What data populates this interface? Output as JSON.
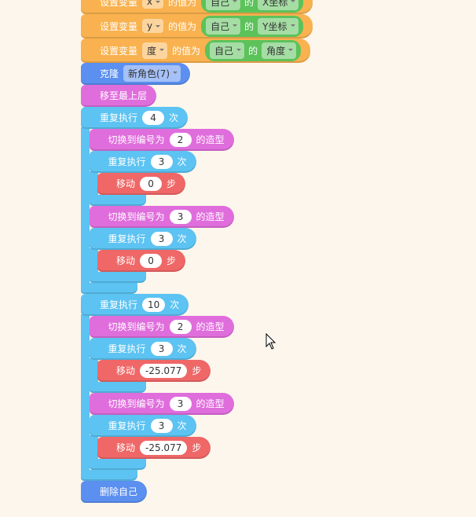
{
  "blocks": [
    {
      "color": "#f9b24f",
      "parts": [
        {
          "text": "设置变量"
        },
        {
          "dropdown": "x"
        },
        {
          "text": "的值为"
        },
        {
          "reporter": {
            "color": "#5cc25a",
            "parts": [
              {
                "dropdown": "自己"
              },
              {
                "text": "的"
              },
              {
                "dropdown": "X坐标"
              }
            ]
          }
        }
      ]
    },
    {
      "color": "#f9b24f",
      "parts": [
        {
          "text": "设置变量"
        },
        {
          "dropdown": "y"
        },
        {
          "text": "的值为"
        },
        {
          "reporter": {
            "color": "#5cc25a",
            "parts": [
              {
                "dropdown": "自己"
              },
              {
                "text": "的"
              },
              {
                "dropdown": "Y坐标"
              }
            ]
          }
        }
      ]
    },
    {
      "color": "#f9b24f",
      "parts": [
        {
          "text": "设置变量"
        },
        {
          "dropdown": "度"
        },
        {
          "text": "的值为"
        },
        {
          "reporter": {
            "color": "#5cc25a",
            "parts": [
              {
                "dropdown": "自己"
              },
              {
                "text": "的"
              },
              {
                "dropdown": "角度"
              }
            ]
          }
        }
      ]
    },
    {
      "color": "#5b8ff0",
      "parts": [
        {
          "text": "克隆"
        },
        {
          "dropdown": "新角色(7)"
        }
      ]
    },
    {
      "color": "#e06ddc",
      "parts": [
        {
          "text": "移至最上层"
        }
      ]
    },
    {
      "color": "#5cc3f2",
      "parts": [
        {
          "text": "重复执行"
        },
        {
          "input": "4"
        },
        {
          "text": "次"
        }
      ],
      "body": [
        {
          "color": "#e06ddc",
          "parts": [
            {
              "text": "切换到编号为"
            },
            {
              "input": "2"
            },
            {
              "text": "的造型"
            }
          ]
        },
        {
          "color": "#5cc3f2",
          "parts": [
            {
              "text": "重复执行"
            },
            {
              "input": "3"
            },
            {
              "text": "次"
            }
          ],
          "body": [
            {
              "color": "#ef6767",
              "parts": [
                {
                  "text": "移动"
                },
                {
                  "input": "0"
                },
                {
                  "text": "步"
                }
              ]
            }
          ]
        },
        {
          "color": "#e06ddc",
          "parts": [
            {
              "text": "切换到编号为"
            },
            {
              "input": "3"
            },
            {
              "text": "的造型"
            }
          ]
        },
        {
          "color": "#5cc3f2",
          "parts": [
            {
              "text": "重复执行"
            },
            {
              "input": "3"
            },
            {
              "text": "次"
            }
          ],
          "body": [
            {
              "color": "#ef6767",
              "parts": [
                {
                  "text": "移动"
                },
                {
                  "input": "0"
                },
                {
                  "text": "步"
                }
              ]
            }
          ]
        }
      ]
    },
    {
      "color": "#5cc3f2",
      "parts": [
        {
          "text": "重复执行"
        },
        {
          "input": "10"
        },
        {
          "text": "次"
        }
      ],
      "body": [
        {
          "color": "#e06ddc",
          "parts": [
            {
              "text": "切换到编号为"
            },
            {
              "input": "2"
            },
            {
              "text": "的造型"
            }
          ]
        },
        {
          "color": "#5cc3f2",
          "parts": [
            {
              "text": "重复执行"
            },
            {
              "input": "3"
            },
            {
              "text": "次"
            }
          ],
          "body": [
            {
              "color": "#ef6767",
              "parts": [
                {
                  "text": "移动"
                },
                {
                  "input": "-25.077"
                },
                {
                  "text": "步"
                }
              ]
            }
          ]
        },
        {
          "color": "#e06ddc",
          "parts": [
            {
              "text": "切换到编号为"
            },
            {
              "input": "3"
            },
            {
              "text": "的造型"
            }
          ]
        },
        {
          "color": "#5cc3f2",
          "parts": [
            {
              "text": "重复执行"
            },
            {
              "input": "3"
            },
            {
              "text": "次"
            }
          ],
          "body": [
            {
              "color": "#ef6767",
              "parts": [
                {
                  "text": "移动"
                },
                {
                  "input": "-25.077"
                },
                {
                  "text": "步"
                }
              ]
            }
          ]
        }
      ]
    },
    {
      "color": "#5b8ff0",
      "parts": [
        {
          "text": "删除自己"
        }
      ]
    }
  ]
}
